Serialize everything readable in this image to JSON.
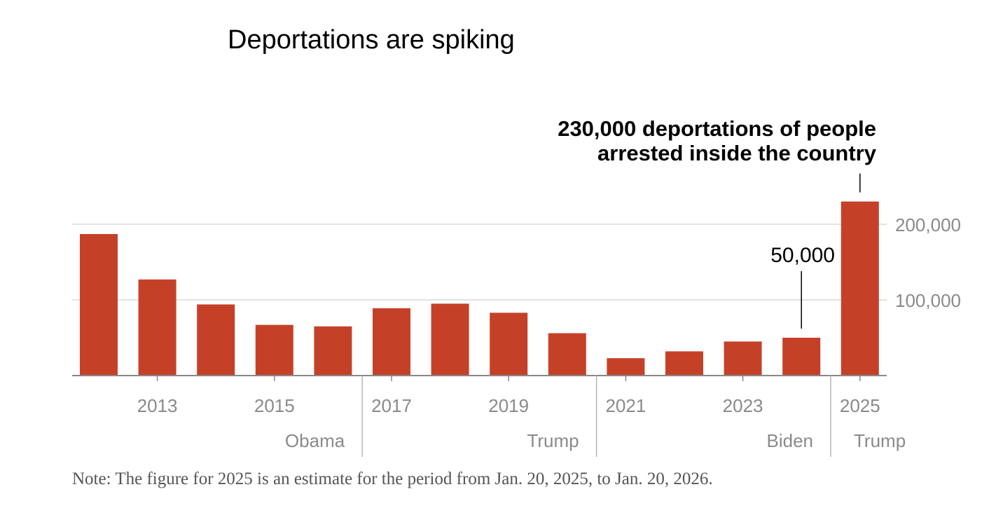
{
  "title": "Deportations are spiking",
  "note": "Note: The figure for 2025 is an estimate for the period from Jan. 20, 2025, to Jan. 20, 2026.",
  "colors": {
    "bar": "#c44128",
    "grid": "#e3e3e3",
    "axis": "#888888",
    "tick_text": "#8a8a8a",
    "divider": "#b5b5b5"
  },
  "chart_data": {
    "type": "bar",
    "title": "Deportations are spiking",
    "xlabel": "",
    "ylabel": "",
    "x": [
      2012,
      2013,
      2014,
      2015,
      2016,
      2017,
      2018,
      2019,
      2020,
      2021,
      2022,
      2023,
      2024,
      2025
    ],
    "values": [
      187000,
      127000,
      94000,
      67000,
      65000,
      89000,
      95000,
      83000,
      56000,
      23000,
      32000,
      45000,
      50000,
      230000
    ],
    "ylim": [
      0,
      230000
    ],
    "grid": true,
    "y_ticks": [
      {
        "value": 100000,
        "label": "100,000"
      },
      {
        "value": 200000,
        "label": "200,000"
      }
    ],
    "x_ticks": [
      {
        "year": 2013,
        "label": "2013"
      },
      {
        "year": 2015,
        "label": "2015"
      },
      {
        "year": 2017,
        "label": "2017"
      },
      {
        "year": 2019,
        "label": "2019"
      },
      {
        "year": 2021,
        "label": "2021"
      },
      {
        "year": 2023,
        "label": "2023"
      },
      {
        "year": 2025,
        "label": "2025"
      }
    ],
    "eras": [
      {
        "label": "Obama",
        "end_after": 2016
      },
      {
        "label": "Trump",
        "end_after": 2020
      },
      {
        "label": "Biden",
        "end_after": 2024
      },
      {
        "label": "Trump",
        "start": 2025
      }
    ],
    "annotations": [
      {
        "year": 2025,
        "lines": [
          "230,000 deportations of people",
          "arrested inside the country"
        ],
        "style": "bold"
      },
      {
        "year": 2024,
        "lines": [
          "50,000"
        ],
        "style": "normal"
      }
    ]
  }
}
